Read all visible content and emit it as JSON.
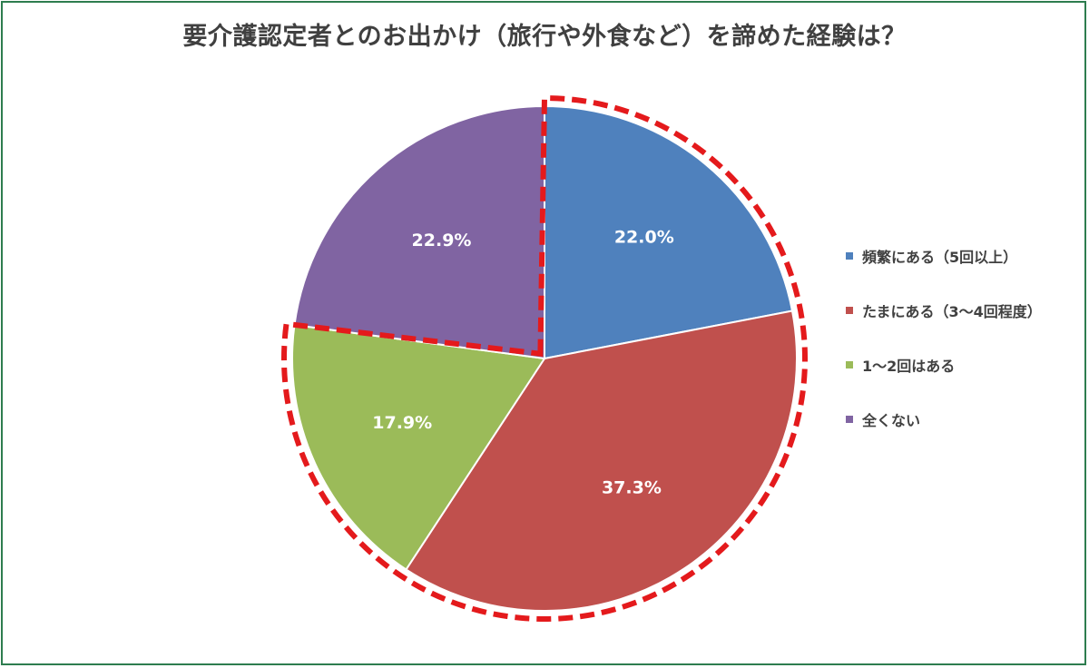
{
  "chart_data": {
    "type": "pie",
    "title": "要介護認定者とのお出かけ（旅行や外食など）を諦めた経験は？",
    "categories": [
      "頻繁にある（5回以上）",
      "たまにある（3〜4回程度）",
      "1〜2回はある",
      "全くない"
    ],
    "values": [
      22.0,
      37.3,
      17.9,
      22.9
    ],
    "data_labels": [
      "22.0%",
      "37.3%",
      "17.9%",
      "22.9%"
    ],
    "colors": [
      "#4f81bd",
      "#c0504d",
      "#9bbb59",
      "#8064a2"
    ],
    "legend_position": "right",
    "start_angle_deg": 0,
    "direction": "clockwise",
    "highlight": {
      "style": "red-dashed-outline",
      "color": "#e41a1c",
      "slices": [
        0,
        1,
        2
      ]
    }
  }
}
